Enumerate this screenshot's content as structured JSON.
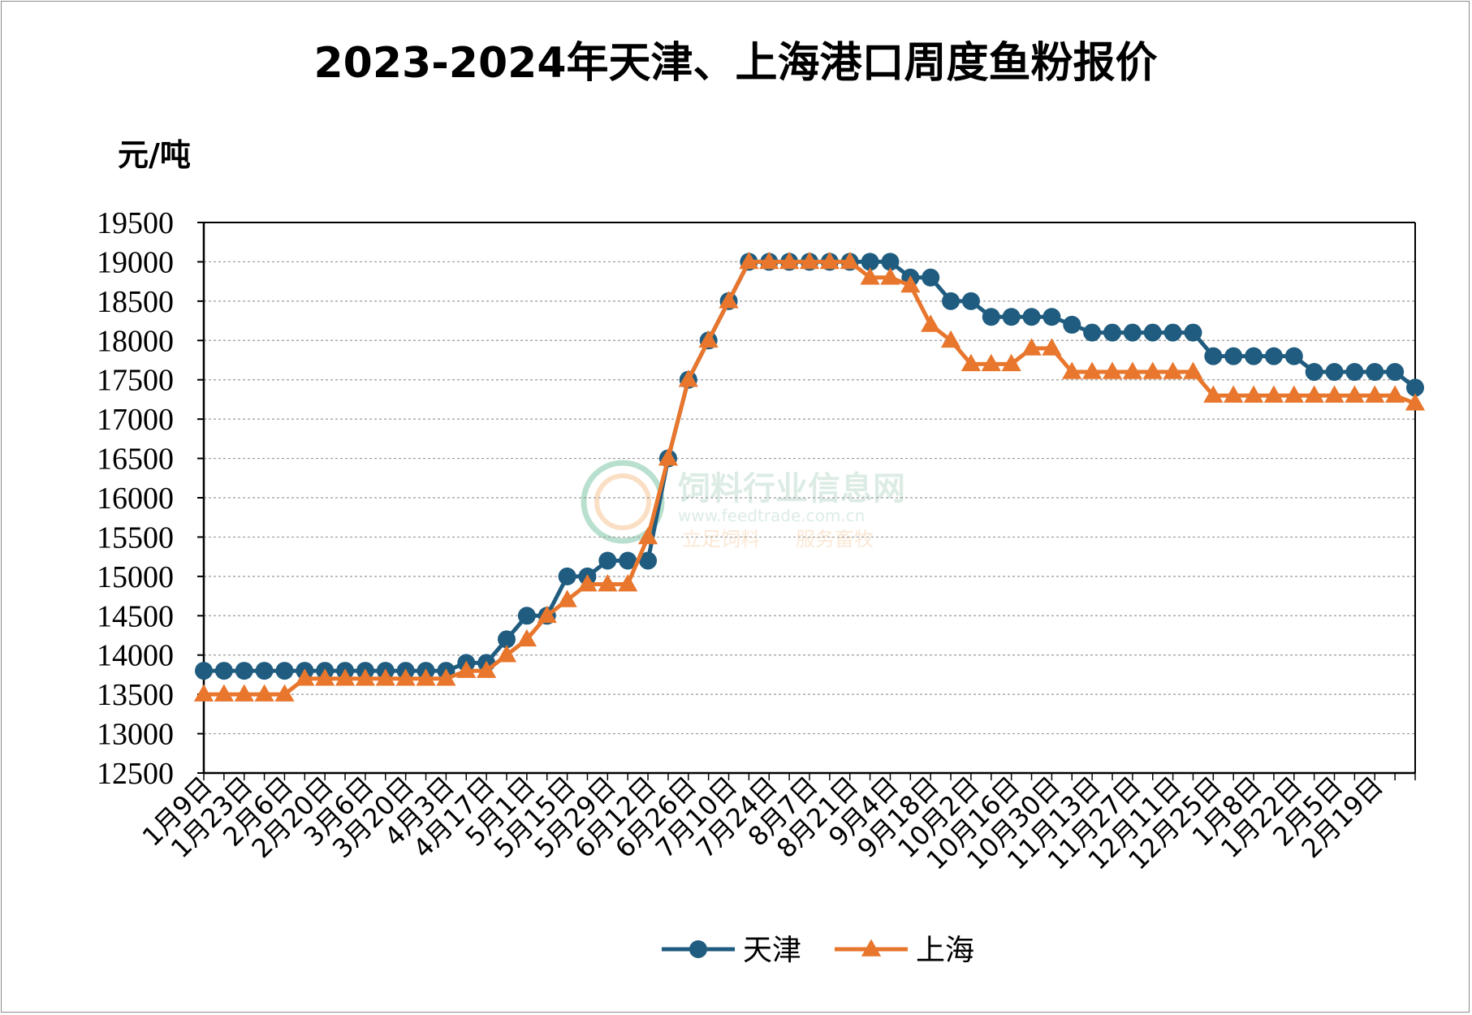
{
  "chart_data": {
    "type": "line",
    "title": "2023-2024年天津、上海港口周度鱼粉报价",
    "ylabel": "元/吨",
    "xlabel": "",
    "ylim": [
      12500,
      19500
    ],
    "ytick_step": 500,
    "grid": true,
    "legend_position": "bottom-center",
    "x_tick_labels": [
      "1月9日",
      "1月23日",
      "2月6日",
      "2月20日",
      "3月6日",
      "3月20日",
      "4月3日",
      "4月17日",
      "5月1日",
      "5月15日",
      "5月29日",
      "6月12日",
      "6月26日",
      "7月10日",
      "7月24日",
      "8月7日",
      "8月21日",
      "9月4日",
      "9月18日",
      "10月2日",
      "10月16日",
      "10月30日",
      "11月13日",
      "11月27日",
      "12月11日",
      "12月25日",
      "1月8日",
      "1月22日",
      "2月5日",
      "2月19日"
    ],
    "series": [
      {
        "name": "天津",
        "color": "#1f5c7f",
        "marker": "circle",
        "values": [
          13800,
          13800,
          13800,
          13800,
          13800,
          13800,
          13800,
          13800,
          13800,
          13800,
          13800,
          13800,
          13800,
          13900,
          13900,
          14200,
          14500,
          14500,
          15000,
          15000,
          15200,
          15200,
          15200,
          16500,
          17500,
          18000,
          18500,
          19000,
          19000,
          19000,
          19000,
          19000,
          19000,
          19000,
          19000,
          18800,
          18800,
          18500,
          18500,
          18300,
          18300,
          18300,
          18300,
          18200,
          18100,
          18100,
          18100,
          18100,
          18100,
          18100,
          17800,
          17800,
          17800,
          17800,
          17800,
          17600,
          17600,
          17600,
          17600,
          17600,
          17400
        ]
      },
      {
        "name": "上海",
        "color": "#e8762c",
        "marker": "triangle",
        "values": [
          13500,
          13500,
          13500,
          13500,
          13500,
          13700,
          13700,
          13700,
          13700,
          13700,
          13700,
          13700,
          13700,
          13800,
          13800,
          14000,
          14200,
          14500,
          14700,
          14900,
          14900,
          14900,
          15500,
          16500,
          17500,
          18000,
          18500,
          19000,
          19000,
          19000,
          19000,
          19000,
          19000,
          18800,
          18800,
          18700,
          18200,
          18000,
          17700,
          17700,
          17700,
          17900,
          17900,
          17600,
          17600,
          17600,
          17600,
          17600,
          17600,
          17600,
          17300,
          17300,
          17300,
          17300,
          17300,
          17300,
          17300,
          17300,
          17300,
          17300,
          17200
        ]
      }
    ]
  },
  "watermark": {
    "name": "饲料行业信息网",
    "url": "www.feedtrade.com.cn",
    "slogan_left": "立足饲料",
    "slogan_right": "服务畜牧"
  }
}
